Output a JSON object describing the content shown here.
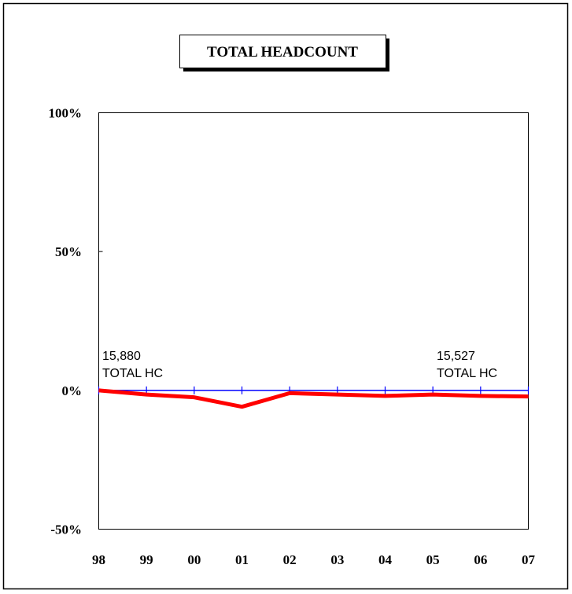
{
  "chart_data": {
    "type": "line",
    "title": "TOTAL HEADCOUNT",
    "categories": [
      "98",
      "99",
      "00",
      "01",
      "02",
      "03",
      "04",
      "05",
      "06",
      "07"
    ],
    "series": [
      {
        "color": "#ff0000",
        "values": [
          0,
          -1.5,
          -2.5,
          -5.9,
          -1,
          -1.5,
          -2,
          -1.5,
          -2,
          -2.2
        ]
      }
    ],
    "ylim": [
      -50,
      100
    ],
    "yticks": [
      {
        "value": 100,
        "label": "100%"
      },
      {
        "value": 50,
        "label": "50%"
      },
      {
        "value": 0,
        "label": "0%"
      },
      {
        "value": -50,
        "label": "-50%"
      }
    ],
    "baseline_color": "#0000ff",
    "annotations": [
      [
        "15,880",
        "TOTAL HC"
      ],
      [
        "15,527",
        "TOTAL HC"
      ]
    ]
  }
}
